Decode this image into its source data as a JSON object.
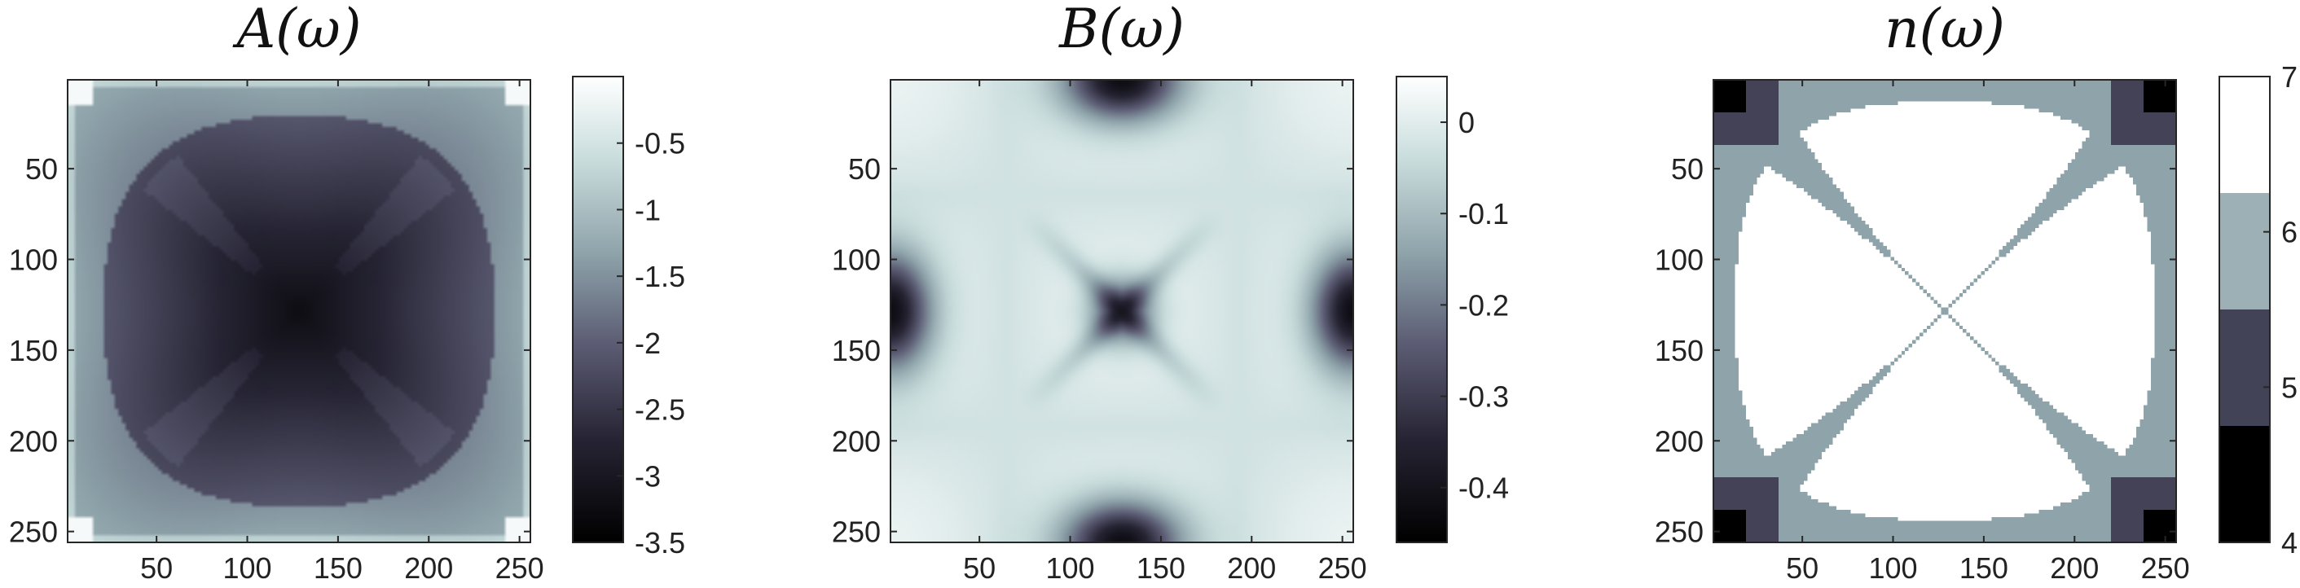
{
  "figure": {
    "colormap": {
      "stops": [
        [
          0.0,
          "#000000"
        ],
        [
          0.22,
          "#262433"
        ],
        [
          0.42,
          "#5a5a72"
        ],
        [
          0.62,
          "#8ea3aa"
        ],
        [
          0.82,
          "#c8dcdc"
        ],
        [
          1.0,
          "#ffffff"
        ]
      ]
    }
  },
  "chart_data": [
    {
      "type": "heatmap",
      "title": "A(ω)",
      "xlabel": "",
      "ylabel": "",
      "x_range": [
        1,
        256
      ],
      "y_range": [
        1,
        256
      ],
      "x_ticks": [
        50,
        100,
        150,
        200,
        250
      ],
      "y_ticks": [
        50,
        100,
        150,
        200,
        250
      ],
      "x_tick_labels": [
        "50",
        "100",
        "150",
        "200",
        "250"
      ],
      "y_tick_labels": [
        "50",
        "100",
        "150",
        "200",
        "250"
      ],
      "colorbar": {
        "range": [
          -3.5,
          0
        ],
        "ticks": [
          -0.5,
          -1,
          -1.5,
          -2,
          -2.5,
          -3,
          -3.5
        ],
        "tick_labels": [
          "-0.5",
          "-1",
          "-1.5",
          "-2",
          "-2.5",
          "-3",
          "-3.5"
        ]
      },
      "grid": false
    },
    {
      "type": "heatmap",
      "title": "B(ω)",
      "xlabel": "",
      "ylabel": "",
      "x_range": [
        1,
        256
      ],
      "y_range": [
        1,
        256
      ],
      "x_ticks": [
        50,
        100,
        150,
        200,
        250
      ],
      "y_ticks": [
        50,
        100,
        150,
        200,
        250
      ],
      "x_tick_labels": [
        "50",
        "100",
        "150",
        "200",
        "250"
      ],
      "y_tick_labels": [
        "50",
        "100",
        "150",
        "200",
        "250"
      ],
      "colorbar": {
        "range": [
          -0.46,
          0.05
        ],
        "ticks": [
          0,
          -0.1,
          -0.2,
          -0.3,
          -0.4
        ],
        "tick_labels": [
          "0",
          "-0.1",
          "-0.2",
          "-0.3",
          "-0.4"
        ]
      },
      "grid": false
    },
    {
      "type": "heatmap",
      "title": "n(ω)",
      "xlabel": "",
      "ylabel": "",
      "x_range": [
        1,
        256
      ],
      "y_range": [
        1,
        256
      ],
      "x_ticks": [
        50,
        100,
        150,
        200,
        250
      ],
      "y_ticks": [
        50,
        100,
        150,
        200,
        250
      ],
      "x_tick_labels": [
        "50",
        "100",
        "150",
        "200",
        "250"
      ],
      "y_tick_labels": [
        "50",
        "100",
        "150",
        "200",
        "250"
      ],
      "colorbar": {
        "range": [
          4,
          7
        ],
        "ticks": [
          7,
          6,
          5,
          4
        ],
        "tick_labels": [
          "7",
          "6",
          "5",
          "4"
        ]
      },
      "values_levels": [
        4,
        5,
        6,
        7
      ],
      "grid": false
    }
  ]
}
